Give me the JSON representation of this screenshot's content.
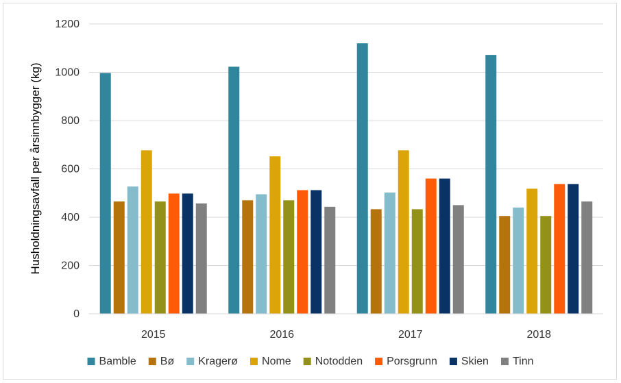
{
  "chart_data": {
    "type": "bar",
    "title": "",
    "xlabel": "",
    "ylabel": "Husholdningsavfall per årsinnbygger (kg)",
    "ylim": [
      0,
      1200
    ],
    "yticks": [
      0,
      200,
      400,
      600,
      800,
      1000,
      1200
    ],
    "categories": [
      "2015",
      "2016",
      "2017",
      "2018"
    ],
    "grid": "horizontal",
    "legend": "bottom",
    "series": [
      {
        "name": "Bamble",
        "color": "#31859c",
        "values": [
          997,
          1023,
          1120,
          1072
        ]
      },
      {
        "name": "Bø",
        "color": "#b5730c",
        "values": [
          465,
          470,
          433,
          405
        ]
      },
      {
        "name": "Kragerø",
        "color": "#85bccc",
        "values": [
          527,
          495,
          502,
          440
        ]
      },
      {
        "name": "Nome",
        "color": "#dba50a",
        "values": [
          677,
          652,
          677,
          518
        ]
      },
      {
        "name": "Notodden",
        "color": "#939118",
        "values": [
          465,
          470,
          433,
          405
        ]
      },
      {
        "name": "Porsgrunn",
        "color": "#fd5b08",
        "values": [
          498,
          512,
          560,
          537
        ]
      },
      {
        "name": "Skien",
        "color": "#0a3365",
        "values": [
          498,
          512,
          560,
          537
        ]
      },
      {
        "name": "Tinn",
        "color": "#808080",
        "values": [
          457,
          443,
          450,
          465
        ]
      }
    ]
  }
}
